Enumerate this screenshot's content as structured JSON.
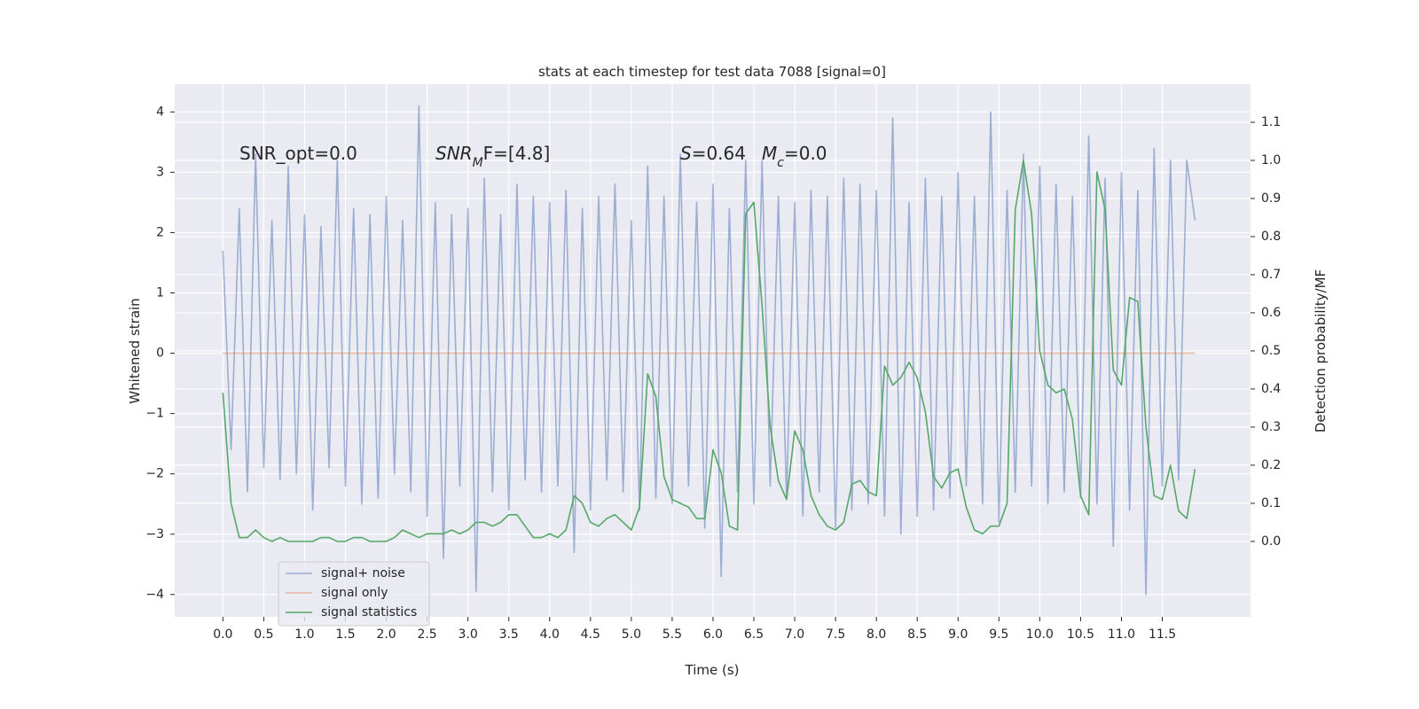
{
  "chart_data": {
    "type": "line",
    "title": "stats at each timestep for test data 7088 [signal=0]",
    "xlabel": "Time (s)",
    "ylabel": "Whitened strain",
    "y2label": "Detection probability/MF",
    "grid": true,
    "legend_loc": "lower left",
    "xlim": [
      -0.59,
      12.58
    ],
    "ylim": [
      -4.37,
      4.46
    ],
    "y2lim": [
      -0.198,
      1.2
    ],
    "xticks": [
      {
        "value": 0,
        "label": "0.0"
      },
      0.5,
      {
        "value": 1,
        "label": "1.0"
      },
      1.5,
      {
        "value": 2,
        "label": "2.0"
      },
      2.5,
      {
        "value": 3,
        "label": "3.0"
      },
      3.5,
      {
        "value": 4,
        "label": "4.0"
      },
      4.5,
      {
        "value": 5,
        "label": "5.0"
      },
      5.5,
      {
        "value": 6,
        "label": "6.0"
      },
      6.5,
      {
        "value": 7,
        "label": "7.0"
      },
      7.5,
      {
        "value": 8,
        "label": "8.0"
      },
      8.5,
      {
        "value": 9,
        "label": "9.0"
      },
      9.5,
      {
        "value": 10,
        "label": "10.0"
      },
      10.5,
      {
        "value": 11,
        "label": "11.0"
      },
      11.5
    ],
    "yticks": [
      {
        "value": -4,
        "label": "−4"
      },
      {
        "value": -3,
        "label": "−3"
      },
      {
        "value": -2,
        "label": "−2"
      },
      {
        "value": -1,
        "label": "−1"
      },
      0,
      1,
      2,
      3,
      4
    ],
    "y2ticks": [
      {
        "value": 0,
        "label": "0.0"
      },
      0.1,
      0.2,
      0.3,
      0.4,
      0.5,
      0.6,
      0.7,
      0.8,
      0.9,
      {
        "value": 1,
        "label": "1.0"
      },
      1.1
    ],
    "annotations": [
      [
        {
          "text": "SNR_opt=0.0"
        }
      ],
      [
        {
          "text": "SNR",
          "style": "italic"
        },
        {
          "text": "M",
          "style": "italic-sub"
        },
        {
          "text": "F=[4.8]"
        }
      ],
      [
        {
          "text": "S",
          "style": "italic"
        },
        {
          "text": "=0.64"
        }
      ],
      [
        {
          "text": "M",
          "style": "italic"
        },
        {
          "text": "c",
          "style": "italic-sub"
        },
        {
          "text": "=0.0"
        }
      ]
    ],
    "x": [
      0.0,
      0.1,
      0.2,
      0.3,
      0.4,
      0.5,
      0.6,
      0.7,
      0.8,
      0.9,
      1.0,
      1.1,
      1.2,
      1.3,
      1.4,
      1.5,
      1.6,
      1.7,
      1.8,
      1.9,
      2.0,
      2.1,
      2.2,
      2.3,
      2.4,
      2.5,
      2.6,
      2.7,
      2.8,
      2.9,
      3.0,
      3.1,
      3.2,
      3.3,
      3.4,
      3.5,
      3.6,
      3.7,
      3.8,
      3.9,
      4.0,
      4.1,
      4.2,
      4.3,
      4.4,
      4.5,
      4.6,
      4.7,
      4.8,
      4.9,
      5.0,
      5.1,
      5.2,
      5.3,
      5.4,
      5.5,
      5.6,
      5.7,
      5.8,
      5.9,
      6.0,
      6.1,
      6.2,
      6.3,
      6.4,
      6.5,
      6.6,
      6.7,
      6.8,
      6.9,
      7.0,
      7.1,
      7.2,
      7.3,
      7.4,
      7.5,
      7.6,
      7.7,
      7.8,
      7.9,
      8.0,
      8.1,
      8.2,
      8.3,
      8.4,
      8.5,
      8.6,
      8.7,
      8.8,
      8.9,
      9.0,
      9.1,
      9.2,
      9.3,
      9.4,
      9.5,
      9.6,
      9.7,
      9.8,
      9.9,
      10.0,
      10.1,
      10.2,
      10.3,
      10.4,
      10.5,
      10.6,
      10.7,
      10.8,
      10.9,
      11.0,
      11.1,
      11.2,
      11.3,
      11.4,
      11.5,
      11.6,
      11.7,
      11.8,
      11.9
    ],
    "series": [
      {
        "name": "signal+ noise",
        "color": "#4c72b0",
        "opacity": 0.5,
        "values": [
          1.7,
          -1.6,
          2.4,
          -2.3,
          3.3,
          -1.9,
          2.2,
          -2.1,
          3.1,
          -2.0,
          2.3,
          -2.6,
          2.1,
          -1.9,
          3.2,
          -2.2,
          2.4,
          -2.5,
          2.3,
          -2.4,
          2.6,
          -2.0,
          2.2,
          -2.3,
          4.1,
          -2.7,
          2.5,
          -3.4,
          2.3,
          -2.2,
          2.4,
          -3.95,
          2.9,
          -2.3,
          2.3,
          -2.6,
          2.8,
          -2.1,
          2.6,
          -2.3,
          2.5,
          -2.2,
          2.7,
          -3.3,
          2.4,
          -2.6,
          2.6,
          -2.1,
          2.8,
          -2.3,
          2.2,
          -2.6,
          3.1,
          -2.4,
          2.6,
          -2.5,
          3.3,
          -2.2,
          2.5,
          -2.9,
          2.8,
          -3.7,
          2.4,
          -2.3,
          3.2,
          -2.5,
          3.2,
          -2.2,
          2.6,
          -2.4,
          2.5,
          -2.7,
          2.7,
          -2.3,
          2.6,
          -2.9,
          2.9,
          -2.6,
          2.8,
          -2.5,
          2.7,
          -2.7,
          3.9,
          -3.0,
          2.5,
          -2.7,
          2.9,
          -2.6,
          2.6,
          -2.4,
          3.0,
          -2.2,
          2.6,
          -2.5,
          4.0,
          -2.8,
          2.7,
          -2.3,
          3.3,
          -2.2,
          3.1,
          -2.5,
          2.8,
          -2.3,
          2.6,
          -2.4,
          3.6,
          -2.5,
          2.9,
          -3.2,
          3.0,
          -2.6,
          2.7,
          -4.0,
          3.4,
          -2.2,
          3.2,
          -2.1,
          3.2,
          2.2
        ]
      },
      {
        "name": "signal only",
        "color": "#dd8452",
        "opacity": 0.5,
        "x": [
          0.0,
          11.9
        ],
        "values": [
          0,
          0
        ]
      },
      {
        "name": "signal statistics",
        "color": "#55a868",
        "opacity": 1,
        "axis": "y2",
        "values": [
          0.39,
          0.1,
          0.01,
          0.01,
          0.03,
          0.01,
          0.0,
          0.01,
          0.0,
          0.0,
          0.0,
          0.0,
          0.01,
          0.01,
          0.0,
          0.0,
          0.01,
          0.01,
          0.0,
          0.0,
          0.0,
          0.01,
          0.03,
          0.02,
          0.01,
          0.02,
          0.02,
          0.02,
          0.03,
          0.02,
          0.03,
          0.05,
          0.05,
          0.04,
          0.05,
          0.07,
          0.07,
          0.04,
          0.01,
          0.01,
          0.02,
          0.01,
          0.03,
          0.12,
          0.1,
          0.05,
          0.04,
          0.06,
          0.07,
          0.05,
          0.03,
          0.09,
          0.44,
          0.38,
          0.17,
          0.11,
          0.1,
          0.09,
          0.06,
          0.06,
          0.24,
          0.18,
          0.04,
          0.03,
          0.86,
          0.89,
          0.62,
          0.3,
          0.16,
          0.11,
          0.29,
          0.24,
          0.12,
          0.07,
          0.04,
          0.03,
          0.05,
          0.15,
          0.16,
          0.13,
          0.12,
          0.46,
          0.41,
          0.43,
          0.47,
          0.43,
          0.34,
          0.17,
          0.14,
          0.18,
          0.19,
          0.09,
          0.03,
          0.02,
          0.04,
          0.04,
          0.1,
          0.87,
          1.0,
          0.86,
          0.5,
          0.41,
          0.39,
          0.4,
          0.32,
          0.12,
          0.07,
          0.97,
          0.87,
          0.45,
          0.41,
          0.64,
          0.63,
          0.3,
          0.12,
          0.11,
          0.2,
          0.08,
          0.06,
          0.19
        ]
      }
    ]
  }
}
